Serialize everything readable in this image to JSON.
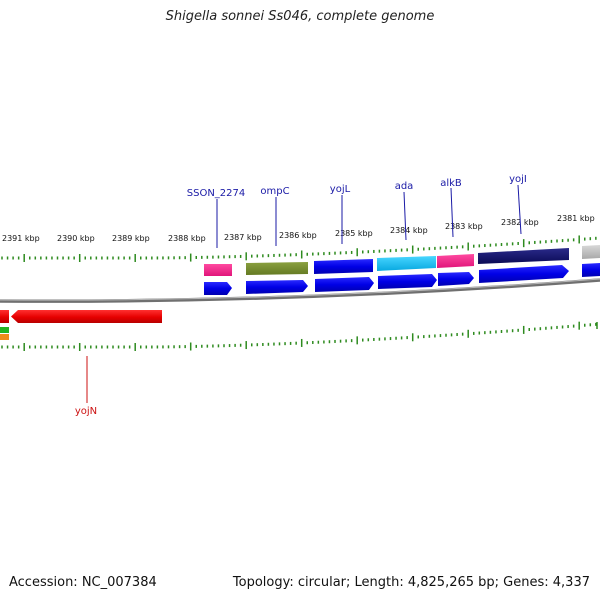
{
  "title": "Shigella sonnei Ss046, complete genome",
  "accession_label": "Accession: NC_007384",
  "topology_label": "Topology: circular; Length: 4,825,265 bp; Genes: 4,337",
  "ticks": [
    "2391 kbp",
    "2390 kbp",
    "2389 kbp",
    "2388 kbp",
    "2387 kbp",
    "2386 kbp",
    "2385 kbp",
    "2384 kbp",
    "2383 kbp",
    "2382 kbp",
    "2381 kbp"
  ],
  "gene_labels": {
    "sson_2274": "SSON_2274",
    "ompc": "ompC",
    "yojl_1": "yojL",
    "ada": "ada",
    "alkb": "alkB",
    "yojl_2": "yojI",
    "yojn": "yojN"
  },
  "colors": {
    "label_blue": "#1a1aa6",
    "label_red": "#cc1111",
    "tick_green": "#2e8b1f",
    "backbone": "#808080"
  }
}
